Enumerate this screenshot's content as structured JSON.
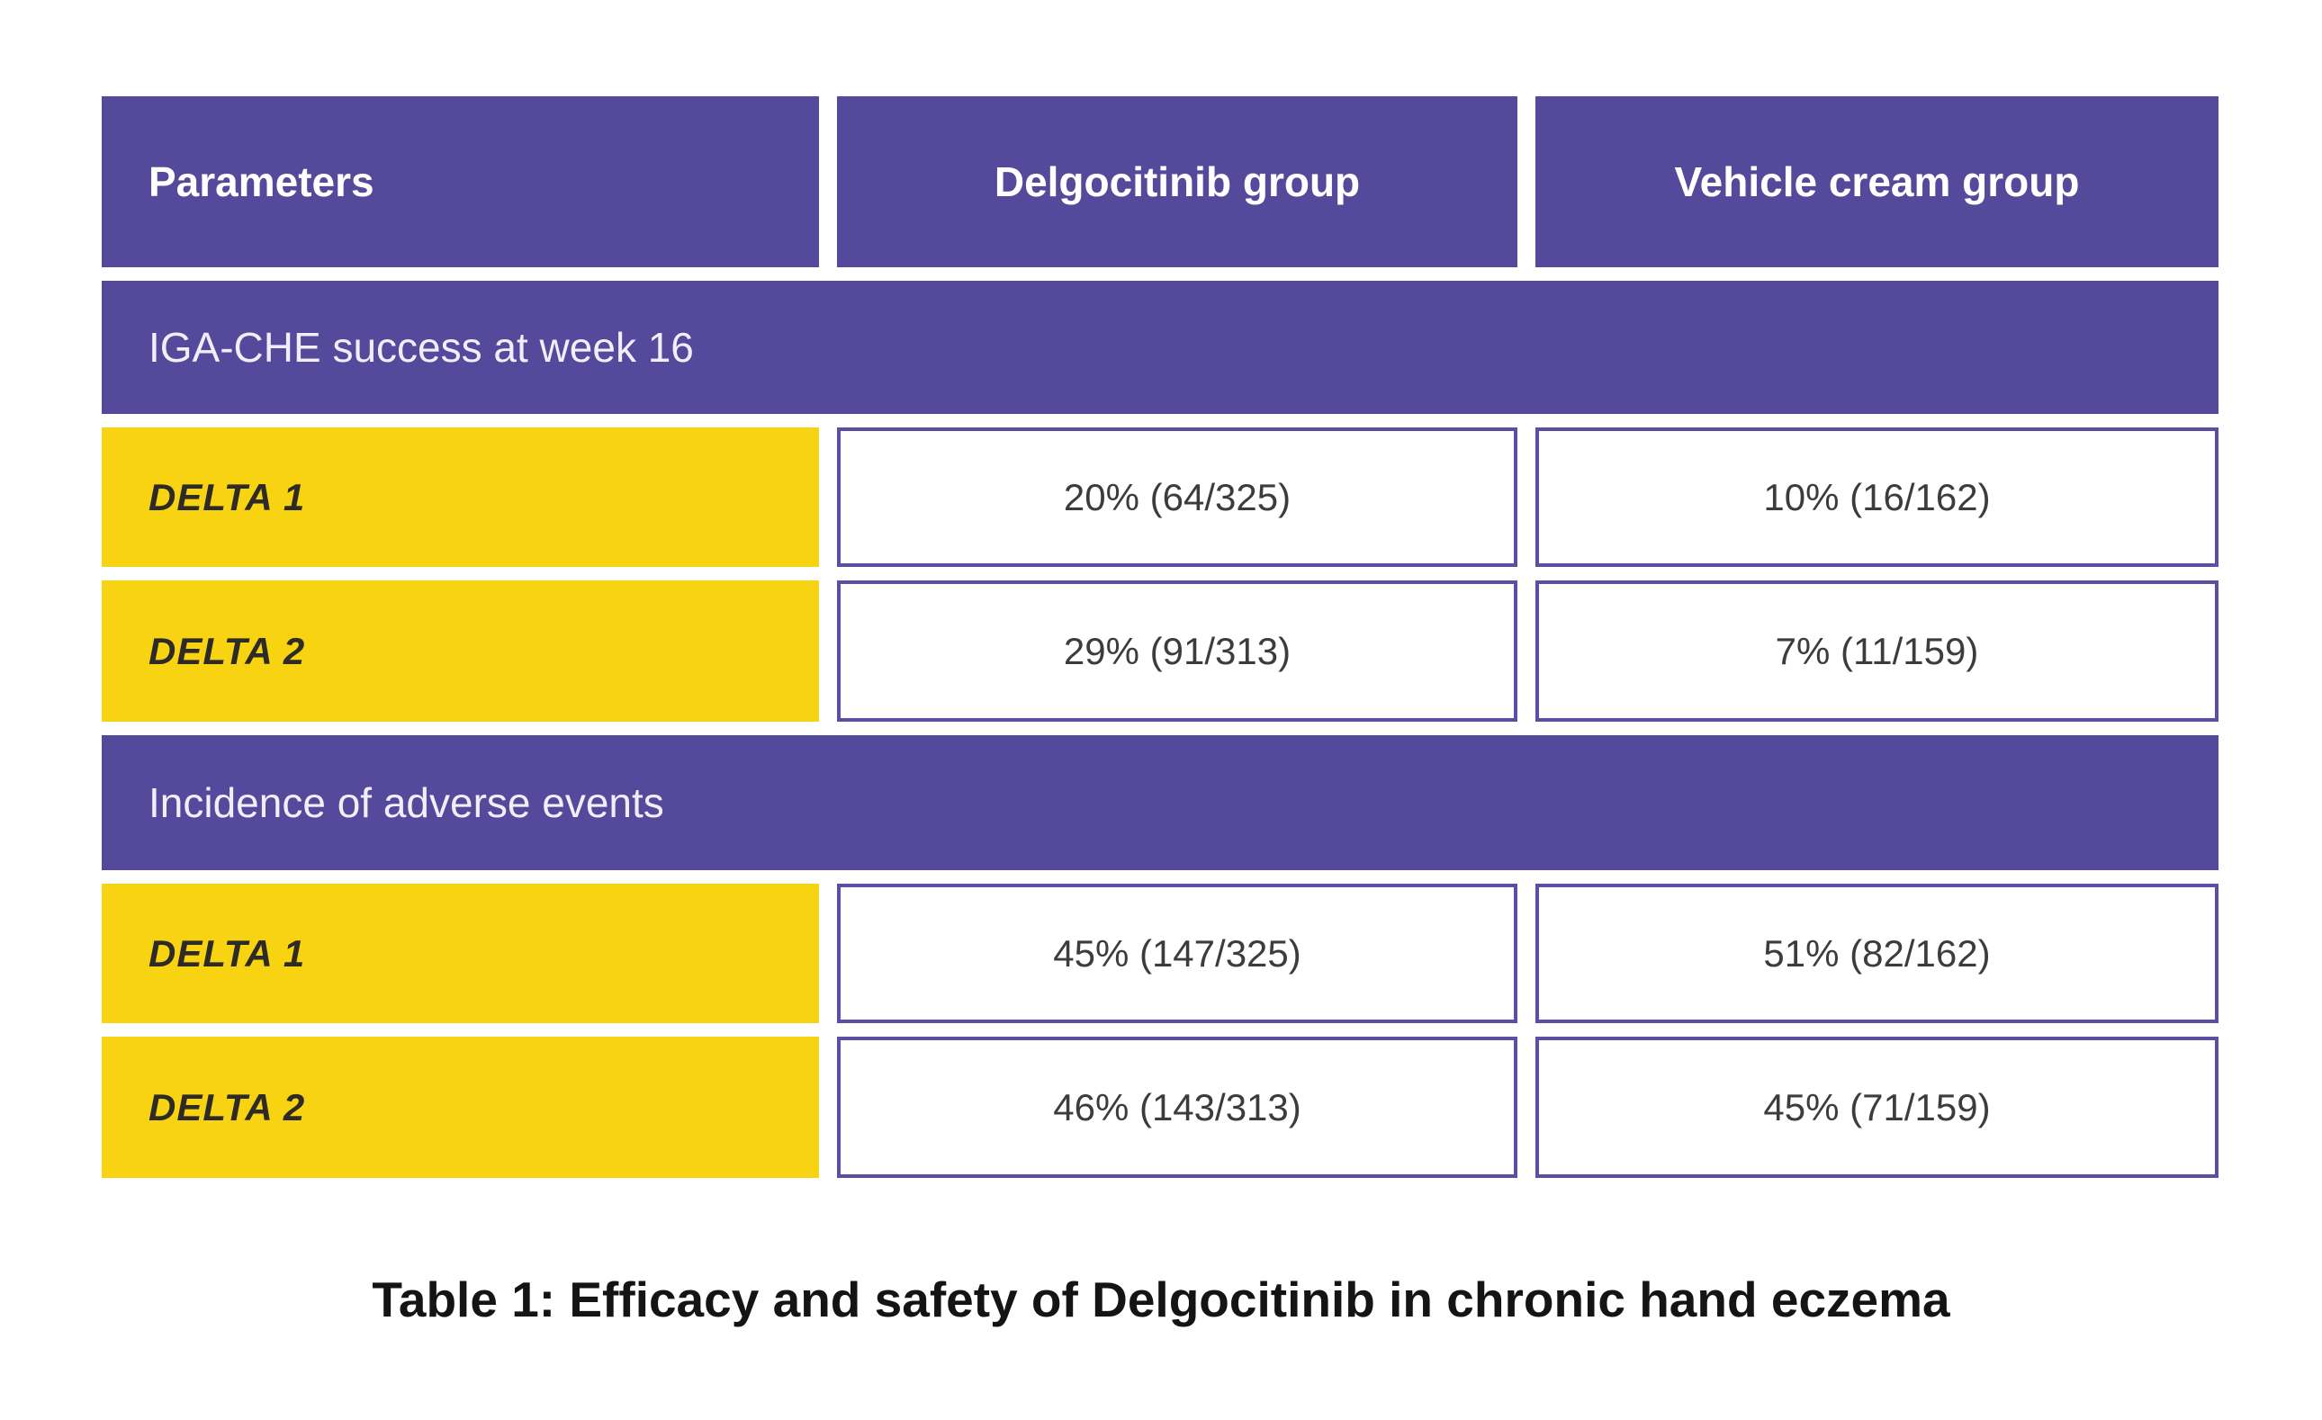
{
  "colors": {
    "purple": "#55499C",
    "yellow": "#F8D312",
    "cell_border": "#5A4FA3",
    "value_text": "#3C3C3C",
    "delta_text": "#2E2A26",
    "band_text": "#F1EEF9",
    "header_text": "#FFFFFF",
    "caption_text": "#141414"
  },
  "table": {
    "columns": [
      "Parameters",
      "Delgocitinib group",
      "Vehicle cream group"
    ],
    "sections": [
      {
        "header": "IGA-CHE success at week 16",
        "rows": [
          {
            "param": "DELTA 1",
            "values": [
              "20% (64/325)",
              "10% (16/162)"
            ]
          },
          {
            "param": "DELTA 2",
            "values": [
              "29% (91/313)",
              "7% (11/159)"
            ]
          }
        ]
      },
      {
        "header": "Incidence of adverse events",
        "rows": [
          {
            "param": "DELTA 1",
            "values": [
              "45% (147/325)",
              "51% (82/162)"
            ]
          },
          {
            "param": "DELTA 2",
            "values": [
              "46% (143/313)",
              "45% (71/159)"
            ]
          }
        ]
      }
    ]
  },
  "caption": "Table 1: Efficacy and safety of Delgocitinib in chronic hand eczema",
  "chart_data": {
    "type": "table",
    "title": "Table 1: Efficacy and safety of Delgocitinib in chronic hand eczema",
    "columns": [
      "Parameters",
      "Delgocitinib group",
      "Vehicle cream group"
    ],
    "rows": [
      [
        "IGA-CHE success at week 16",
        "",
        ""
      ],
      [
        "DELTA 1",
        "20% (64/325)",
        "10% (16/162)"
      ],
      [
        "DELTA 2",
        "29% (91/313)",
        "7% (11/159)"
      ],
      [
        "Incidence of adverse events",
        "",
        ""
      ],
      [
        "DELTA 1",
        "45% (147/325)",
        "51% (82/162)"
      ],
      [
        "DELTA 2",
        "46% (143/313)",
        "45% (71/159)"
      ]
    ],
    "series": [
      {
        "name": "Delgocitinib group",
        "metric": "IGA-CHE success at week 16 (%)",
        "categories": [
          "DELTA 1",
          "DELTA 2"
        ],
        "values": [
          20,
          29
        ],
        "counts": [
          "64/325",
          "91/313"
        ]
      },
      {
        "name": "Vehicle cream group",
        "metric": "IGA-CHE success at week 16 (%)",
        "categories": [
          "DELTA 1",
          "DELTA 2"
        ],
        "values": [
          10,
          7
        ],
        "counts": [
          "16/162",
          "11/159"
        ]
      },
      {
        "name": "Delgocitinib group",
        "metric": "Incidence of adverse events (%)",
        "categories": [
          "DELTA 1",
          "DELTA 2"
        ],
        "values": [
          45,
          46
        ],
        "counts": [
          "147/325",
          "143/313"
        ]
      },
      {
        "name": "Vehicle cream group",
        "metric": "Incidence of adverse events (%)",
        "categories": [
          "DELTA 1",
          "DELTA 2"
        ],
        "values": [
          51,
          45
        ],
        "counts": [
          "82/162",
          "71/159"
        ]
      }
    ]
  }
}
